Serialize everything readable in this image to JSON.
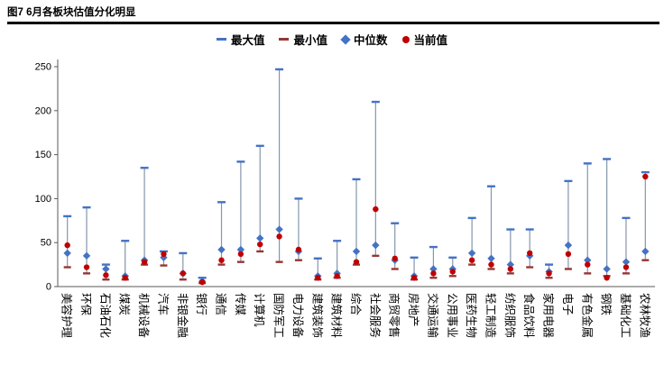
{
  "title": "图7 6月各板块估值分化明显",
  "chart_data": {
    "type": "range-whisker",
    "title": "图7 6月各板块估值分化明显",
    "legend_position": "top",
    "grid": false,
    "ylim": [
      0,
      250
    ],
    "yticks": [
      0,
      50,
      100,
      150,
      200,
      250
    ],
    "style": {
      "axis_color": "#595959",
      "range_line_color": "#8496AB",
      "background": "#ffffff"
    },
    "legend": [
      {
        "key": "max",
        "label": "最大值",
        "marker": "dash",
        "color": "#4472C4"
      },
      {
        "key": "min",
        "label": "最小值",
        "marker": "dash",
        "color": "#953735"
      },
      {
        "key": "median",
        "label": "中位数",
        "marker": "diamond",
        "color": "#4472C4"
      },
      {
        "key": "current",
        "label": "当前值",
        "marker": "dot",
        "color": "#C00000"
      }
    ],
    "categories": [
      "美容护理",
      "环保",
      "石油石化",
      "煤炭",
      "机械设备",
      "汽车",
      "非银金融",
      "银行",
      "通信",
      "传媒",
      "计算机",
      "国防军工",
      "电力设备",
      "建筑装饰",
      "建筑材料",
      "综合",
      "社会服务",
      "商贸零售",
      "房地产",
      "交通运输",
      "公用事业",
      "医药生物",
      "轻工制造",
      "纺织服饰",
      "食品饮料",
      "家用电器",
      "电子",
      "有色金属",
      "钢铁",
      "基础化工",
      "农林牧渔"
    ],
    "series": [
      {
        "key": "max",
        "name": "最大值",
        "values": [
          80,
          90,
          25,
          52,
          135,
          40,
          38,
          10,
          96,
          142,
          160,
          247,
          100,
          32,
          52,
          122,
          210,
          72,
          33,
          45,
          33,
          78,
          114,
          65,
          65,
          25,
          120,
          140,
          145,
          78,
          130
        ]
      },
      {
        "key": "min",
        "name": "最小值",
        "values": [
          22,
          15,
          8,
          8,
          25,
          24,
          8,
          4,
          25,
          28,
          40,
          28,
          30,
          8,
          10,
          25,
          35,
          20,
          8,
          10,
          12,
          25,
          20,
          15,
          22,
          10,
          20,
          15,
          12,
          15,
          30
        ]
      },
      {
        "key": "median",
        "name": "中位数",
        "values": [
          38,
          35,
          20,
          12,
          30,
          33,
          15,
          6,
          42,
          42,
          55,
          65,
          40,
          12,
          15,
          40,
          47,
          30,
          12,
          20,
          20,
          38,
          32,
          25,
          35,
          17,
          47,
          30,
          20,
          28,
          40
        ]
      },
      {
        "key": "current",
        "name": "当前值",
        "values": [
          47,
          22,
          13,
          10,
          28,
          37,
          15,
          5,
          30,
          37,
          48,
          57,
          42,
          10,
          12,
          28,
          88,
          32,
          10,
          15,
          17,
          30,
          25,
          20,
          38,
          15,
          37,
          25,
          10,
          22,
          125
        ]
      }
    ]
  }
}
